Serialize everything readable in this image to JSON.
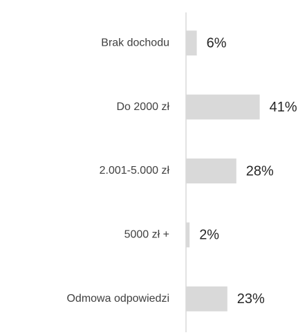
{
  "chart_data": {
    "type": "bar",
    "orientation": "horizontal",
    "categories": [
      "Brak dochodu",
      "Do 2000 zł",
      "2.001-5.000 zł",
      "5000 zł +",
      "Odmowa odpowiedzi"
    ],
    "values": [
      6,
      41,
      28,
      2,
      23
    ],
    "value_labels": [
      "6%",
      "41%",
      "28%",
      "2%",
      "23%"
    ],
    "color": "#d9d9d9"
  }
}
